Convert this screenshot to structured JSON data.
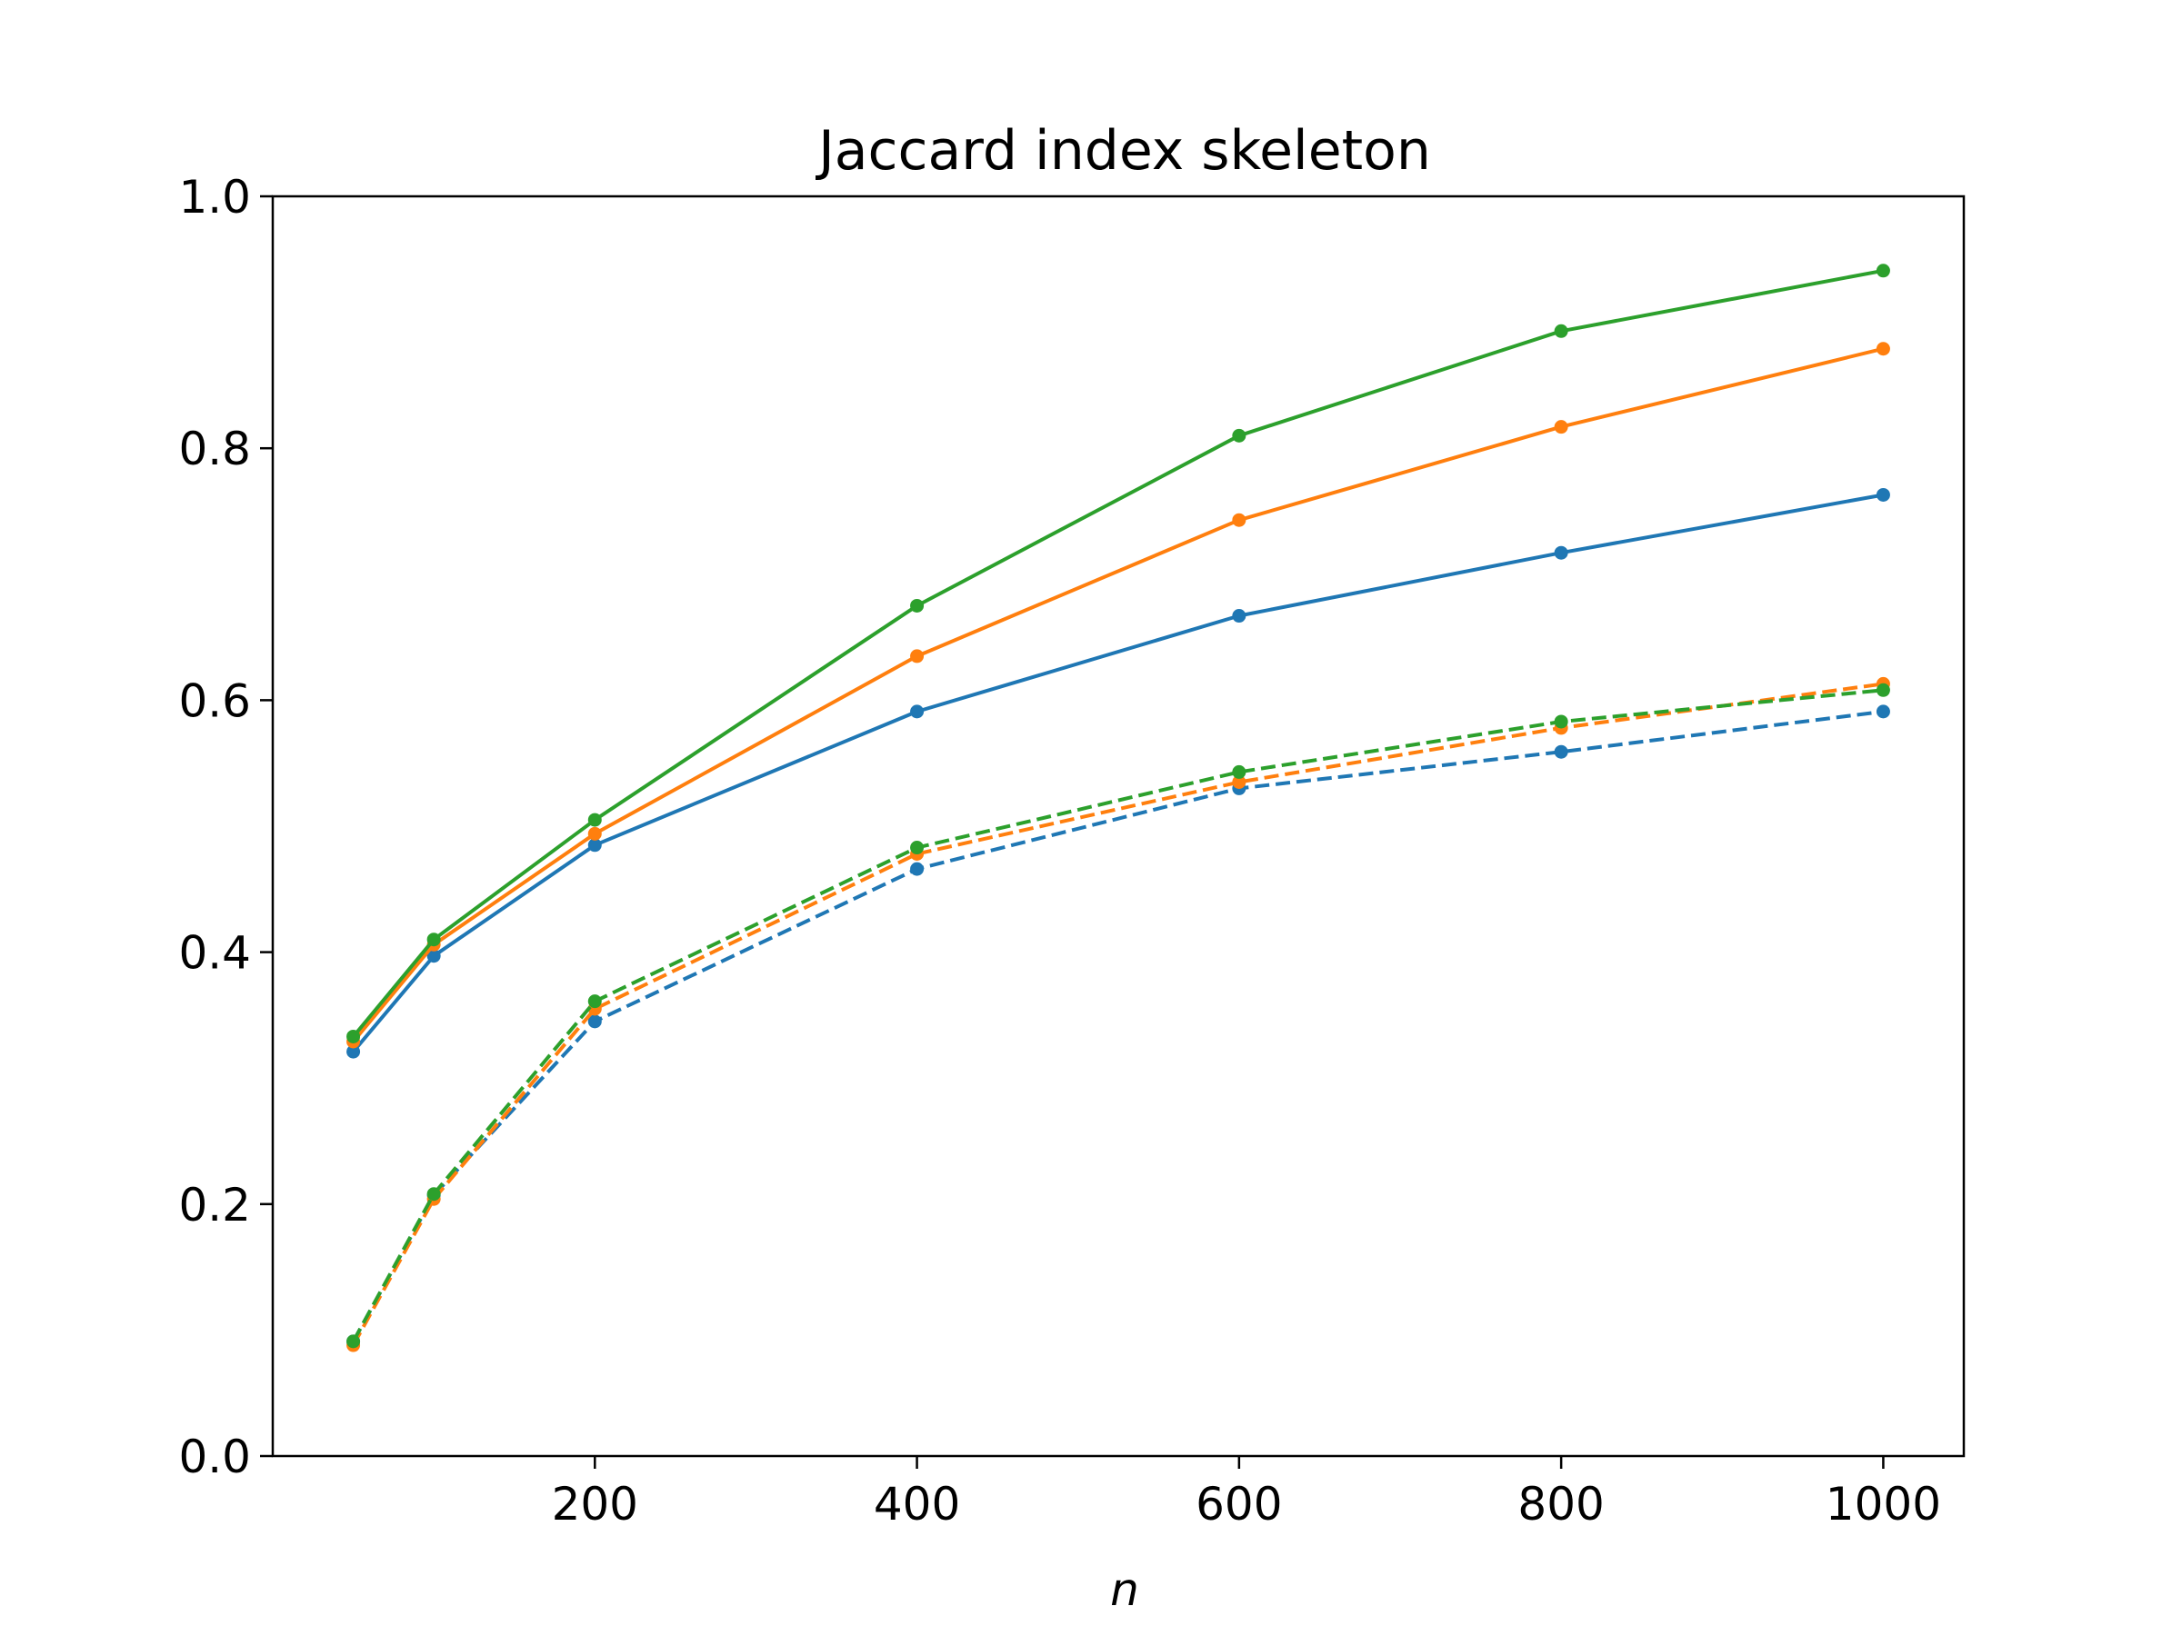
{
  "chart_data": {
    "type": "line",
    "title": "Jaccard index skeleton",
    "xlabel": "n",
    "ylabel": "",
    "xlim": [
      0,
      1050
    ],
    "ylim": [
      0.0,
      1.0
    ],
    "xticks": [
      200,
      400,
      600,
      800,
      1000
    ],
    "xtick_labels": [
      "200",
      "400",
      "600",
      "800",
      "1000"
    ],
    "yticks": [
      0.0,
      0.2,
      0.4,
      0.6,
      0.8,
      1.0
    ],
    "ytick_labels": [
      "0.0",
      "0.2",
      "0.4",
      "0.6",
      "0.8",
      "1.0"
    ],
    "grid": false,
    "legend": "none",
    "x": [
      50,
      100,
      200,
      400,
      600,
      800,
      1000
    ],
    "series": [
      {
        "color": "#1f77b4",
        "linestyle": "solid",
        "values": [
          0.321,
          0.397,
          0.485,
          0.591,
          0.667,
          0.717,
          0.763
        ]
      },
      {
        "color": "#ff7f0e",
        "linestyle": "solid",
        "values": [
          0.329,
          0.406,
          0.494,
          0.635,
          0.743,
          0.817,
          0.879
        ]
      },
      {
        "color": "#2ca02c",
        "linestyle": "solid",
        "values": [
          0.333,
          0.41,
          0.505,
          0.675,
          0.81,
          0.893,
          0.941
        ]
      },
      {
        "color": "#1f77b4",
        "linestyle": "dashed",
        "values": [
          0.091,
          0.207,
          0.345,
          0.466,
          0.53,
          0.559,
          0.591
        ]
      },
      {
        "color": "#ff7f0e",
        "linestyle": "dashed",
        "values": [
          0.088,
          0.204,
          0.355,
          0.478,
          0.535,
          0.578,
          0.613
        ]
      },
      {
        "color": "#2ca02c",
        "linestyle": "dashed",
        "values": [
          0.091,
          0.208,
          0.361,
          0.483,
          0.543,
          0.583,
          0.608
        ]
      }
    ]
  }
}
